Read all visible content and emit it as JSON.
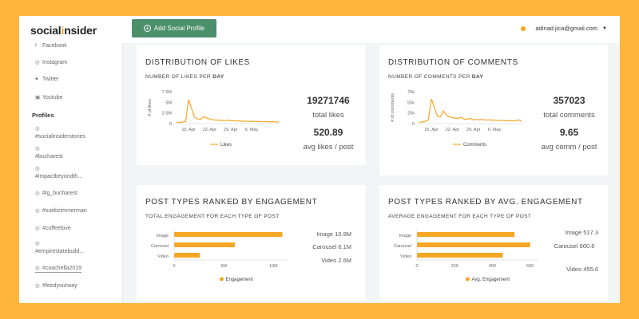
{
  "app": {
    "logo_prefix": "social",
    "logo_mark": "i",
    "logo_suffix": "nsider",
    "add_profile_label": "Add Social Profile",
    "user_email": "adinad.jica@gmail.com",
    "accent": "#f5a623",
    "primary": "#4b8f6b"
  },
  "sidebar": {
    "networks": [
      {
        "label": "Facebook",
        "icon": "facebook-icon"
      },
      {
        "label": "Instagram",
        "icon": "instagram-icon"
      },
      {
        "label": "Twitter",
        "icon": "twitter-icon"
      },
      {
        "label": "Youtube",
        "icon": "youtube-icon"
      }
    ],
    "profiles_heading": "Profiles",
    "profiles": [
      {
        "label": "#socialinsiderstories"
      },
      {
        "label": "#bucharest"
      },
      {
        "label": "#impactbeyondth..."
      },
      {
        "label": "#ig_bucharest"
      },
      {
        "label": "#suebzimmerman"
      },
      {
        "label": "#coffeelove"
      },
      {
        "label": "#empirestatebuild..."
      },
      {
        "label": "#coachella2019"
      },
      {
        "label": "#feedyourway"
      }
    ]
  },
  "likes_card": {
    "title": "Distribution of likes",
    "subtitle_prefix": "Number of likes per",
    "subtitle_bold": "day",
    "total": "19271746",
    "total_label": "total likes",
    "avg": "520.89",
    "avg_label": "avg likes / post"
  },
  "comments_card": {
    "title": "Distribution of comments",
    "subtitle_prefix": "Number of comments per",
    "subtitle_bold": "day",
    "total": "357023",
    "total_label": "total comments",
    "avg": "9.65",
    "avg_label": "avg comm / post"
  },
  "engagement_card": {
    "title": "Post types ranked by engagement",
    "subtitle": "Total engagement for each type of post",
    "stats": [
      "Image 10.9M",
      "Carousel 6.1M",
      "Video 2.6M"
    ]
  },
  "avg_engagement_card": {
    "title": "Post types ranked by avg. engagement",
    "subtitle": "Average engagement for each type of post",
    "stats": [
      "Image 517.3",
      "Carousel 600.6",
      "Video 455.6"
    ]
  },
  "chart_data": [
    {
      "type": "line",
      "ylabel": "# of likes",
      "xlabel": "",
      "x_tick_labels": [
        "15. Apr",
        "22. Apr",
        "29. Apr",
        "6. May"
      ],
      "y_tick_labels": [
        "0",
        "2.5M",
        "5M",
        "7.5M"
      ],
      "ylim": [
        0,
        7500000
      ],
      "series": [
        {
          "name": "Likes",
          "values": [
            250000,
            300000,
            350000,
            500000,
            5600000,
            3500000,
            1500000,
            1100000,
            1000000,
            1600000,
            1300000,
            1100000,
            900000,
            850000,
            800000,
            750000,
            700000,
            800000,
            650000,
            700000,
            600000,
            650000,
            550000,
            600000,
            500000,
            550000,
            500000,
            550000,
            450000,
            500000,
            450000,
            400000,
            450000,
            400000,
            380000
          ]
        }
      ],
      "grid": false,
      "legend": "bottom"
    },
    {
      "type": "line",
      "ylabel": "# of comments",
      "xlabel": "",
      "x_tick_labels": [
        "15. Apr",
        "22. Apr",
        "29. Apr",
        "6. May"
      ],
      "y_tick_labels": [
        "0",
        "25k",
        "50k",
        "75k"
      ],
      "ylim": [
        0,
        75000
      ],
      "series": [
        {
          "name": "Comments",
          "values": [
            3000,
            4000,
            5000,
            9000,
            58000,
            38000,
            18000,
            16000,
            30000,
            20000,
            16000,
            14000,
            13000,
            12000,
            15000,
            10000,
            11000,
            12000,
            9000,
            10000,
            9000,
            10000,
            8000,
            9000,
            8000,
            8500,
            7000,
            8000,
            7000,
            7500,
            6500,
            7000,
            6000,
            9000,
            5000
          ]
        }
      ],
      "grid": false,
      "legend": "bottom"
    },
    {
      "type": "bar",
      "orientation": "horizontal",
      "categories": [
        "Image",
        "Carousel",
        "Video"
      ],
      "series": [
        {
          "name": "Engagement",
          "values": [
            10900000,
            6100000,
            2600000
          ]
        }
      ],
      "x_tick_labels": [
        "0",
        "5M",
        "10M"
      ],
      "xlim": [
        0,
        11500000
      ],
      "legend": "bottom"
    },
    {
      "type": "bar",
      "orientation": "horizontal",
      "categories": [
        "Image",
        "Carousel",
        "Video"
      ],
      "series": [
        {
          "name": "Avg. Engagement",
          "values": [
            517.3,
            600.6,
            455.6
          ]
        }
      ],
      "x_tick_labels": [
        "0",
        "200",
        "400",
        "600"
      ],
      "xlim": [
        0,
        640
      ],
      "legend": "bottom"
    }
  ]
}
